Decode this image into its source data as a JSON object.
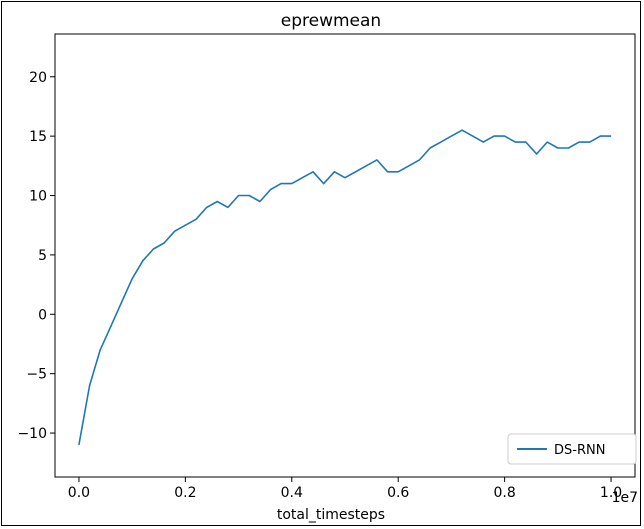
{
  "chart_data": {
    "type": "line",
    "title": "eprewmean",
    "xlabel": "total_timesteps",
    "ylabel": "",
    "x_offset_text": "1e7",
    "xlim": [
      -0.045,
      1.045
    ],
    "ylim": [
      -13.7,
      23.6
    ],
    "xticks": [
      0.0,
      0.2,
      0.4,
      0.6,
      0.8,
      1.0
    ],
    "xtick_labels": [
      "0.0",
      "0.2",
      "0.4",
      "0.6",
      "0.8",
      "1.0"
    ],
    "yticks": [
      -10,
      -5,
      0,
      5,
      10,
      15,
      20
    ],
    "ytick_labels": [
      "−10",
      "−5",
      "0",
      "5",
      "10",
      "15",
      "20"
    ],
    "grid": false,
    "legend_position": "lower-right",
    "series": [
      {
        "name": "DS-RNN",
        "color": "#1f77b4",
        "x": [
          0.0,
          0.02,
          0.04,
          0.06,
          0.08,
          0.1,
          0.12,
          0.14,
          0.16,
          0.18,
          0.2,
          0.22,
          0.24,
          0.26,
          0.28,
          0.3,
          0.32,
          0.34,
          0.36,
          0.38,
          0.4,
          0.42,
          0.44,
          0.46,
          0.48,
          0.5,
          0.52,
          0.54,
          0.56,
          0.58,
          0.6,
          0.62,
          0.64,
          0.66,
          0.68,
          0.7,
          0.72,
          0.74,
          0.76,
          0.78,
          0.8,
          0.82,
          0.84,
          0.86,
          0.88,
          0.9,
          0.92,
          0.94,
          0.96,
          0.98,
          1.0
        ],
        "y": [
          -11,
          -6,
          -3,
          -1,
          1,
          3,
          4.5,
          5.5,
          6,
          7,
          7.5,
          8,
          9,
          9.5,
          9,
          10,
          10,
          9.5,
          10.5,
          11,
          11,
          11.5,
          12,
          11,
          12,
          11.5,
          12,
          12.5,
          13,
          12,
          12,
          12.5,
          13,
          14,
          14.5,
          15,
          15.5,
          15,
          14.5,
          15,
          15,
          14.5,
          14.5,
          13.5,
          14.5,
          14,
          14,
          14.5,
          14.5,
          15,
          15
        ]
      }
    ]
  }
}
